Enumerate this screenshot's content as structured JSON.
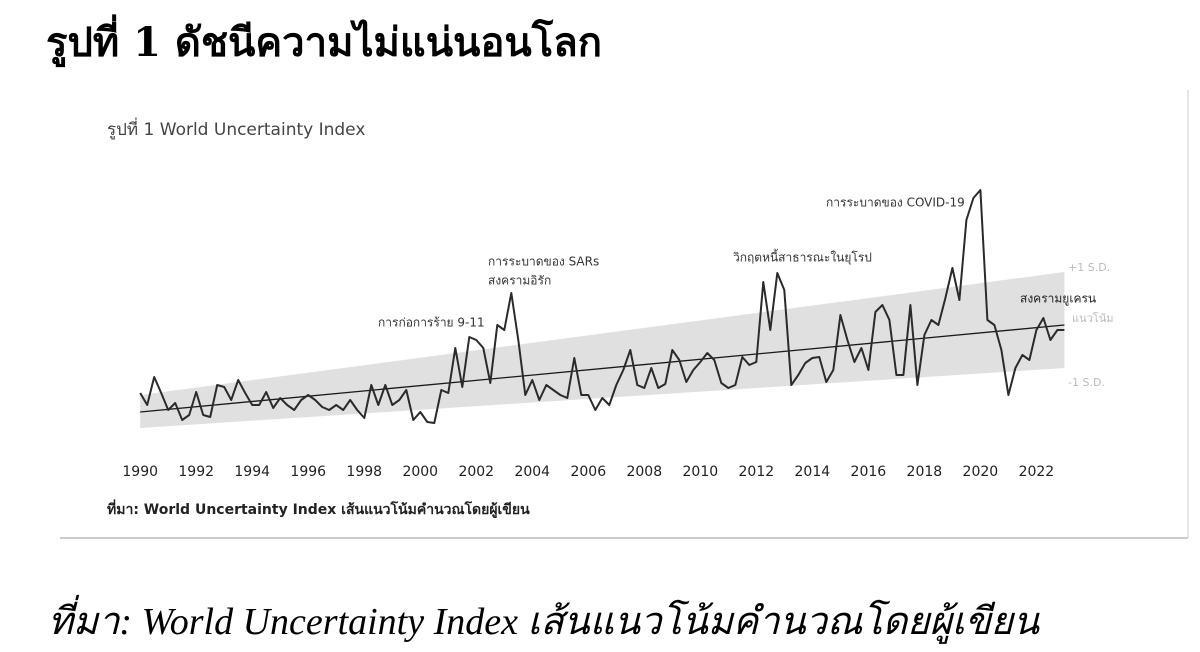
{
  "title": "รูปที่ 1 ดัชนีความไม่แน่นอนโลก",
  "chart_data": {
    "type": "line",
    "title": "รูปที่ 1 World Uncertainty Index",
    "source": "ที่มา: World Uncertainty Index เส้นแนวโน้มคำนวณโดยผู้เขียน",
    "x": [
      1990,
      1990.25,
      1990.5,
      1990.75,
      1991,
      1991.25,
      1991.5,
      1991.75,
      1992,
      1992.25,
      1992.5,
      1992.75,
      1993,
      1993.25,
      1993.5,
      1993.75,
      1994,
      1994.25,
      1994.5,
      1994.75,
      1995,
      1995.25,
      1995.5,
      1995.75,
      1996,
      1996.25,
      1996.5,
      1996.75,
      1997,
      1997.25,
      1997.5,
      1997.75,
      1998,
      1998.25,
      1998.5,
      1998.75,
      1999,
      1999.25,
      1999.5,
      1999.75,
      2000,
      2000.25,
      2000.5,
      2000.75,
      2001,
      2001.25,
      2001.5,
      2001.75,
      2002,
      2002.25,
      2002.5,
      2002.75,
      2003,
      2003.25,
      2003.5,
      2003.75,
      2004,
      2004.25,
      2004.5,
      2004.75,
      2005,
      2005.25,
      2005.5,
      2005.75,
      2006,
      2006.25,
      2006.5,
      2006.75,
      2007,
      2007.25,
      2007.5,
      2007.75,
      2008,
      2008.25,
      2008.5,
      2008.75,
      2009,
      2009.25,
      2009.5,
      2009.75,
      2010,
      2010.25,
      2010.5,
      2010.75,
      2011,
      2011.25,
      2011.5,
      2011.75,
      2012,
      2012.25,
      2012.5,
      2012.75,
      2013,
      2013.25,
      2013.5,
      2013.75,
      2014,
      2014.25,
      2014.5,
      2014.75,
      2015,
      2015.25,
      2015.5,
      2015.75,
      2016,
      2016.25,
      2016.5,
      2016.75,
      2017,
      2017.25,
      2017.5,
      2017.75,
      2018,
      2018.25,
      2018.5,
      2018.75,
      2019,
      2019.25,
      2019.5,
      2019.75,
      2020,
      2020.25,
      2020.5,
      2020.75,
      2021,
      2021.25,
      2021.5,
      2021.75,
      2022,
      2022.25,
      2022.5,
      2022.75,
      2023
    ],
    "values": [
      18.8,
      14,
      25.2,
      18.8,
      12,
      14.8,
      8,
      10,
      19.2,
      10,
      9.2,
      22,
      21.2,
      16,
      24,
      18.8,
      14,
      14,
      19.2,
      12.8,
      16.8,
      14,
      12,
      16,
      18,
      16,
      13.2,
      12,
      14,
      12,
      16,
      12,
      8.8,
      22,
      14,
      22,
      14,
      16,
      20,
      8,
      11.2,
      7.2,
      6.8,
      20,
      18.8,
      36.8,
      21.2,
      41.2,
      40,
      36.8,
      22.8,
      46,
      44,
      58.8,
      40,
      18,
      24,
      16,
      22,
      20,
      18,
      16.8,
      32.8,
      18,
      18,
      12,
      16.8,
      14,
      22,
      28,
      36,
      22,
      20.8,
      28.8,
      20.8,
      22.4,
      36,
      32,
      23.2,
      28,
      31.2,
      34.8,
      32,
      22.8,
      20.8,
      22,
      33.2,
      30,
      31.2,
      63.2,
      44,
      66.8,
      60,
      22,
      26,
      30.8,
      32.8,
      33.2,
      23.2,
      28,
      50,
      40,
      31.2,
      36.8,
      28,
      51.2,
      54,
      48,
      26,
      26,
      54,
      22,
      42,
      48,
      46,
      56.8,
      68.8,
      56,
      88,
      96.8,
      100,
      48,
      46,
      36,
      18,
      28.8,
      34,
      32,
      44,
      48.8,
      40,
      44,
      44
    ],
    "color": "#2b2b2b",
    "trend": {
      "x": [
        1990,
        2023
      ],
      "values": [
        11.2,
        46
      ],
      "color": "#1a1a1a"
    },
    "band": {
      "x": [
        1990,
        2023
      ],
      "upper": [
        18,
        67.2
      ],
      "lower": [
        4.8,
        28.8
      ],
      "color": "#e0e0e0"
    },
    "band_labels": [
      "+1 S.D.",
      "แนวโน้ม",
      "-1 S.D."
    ],
    "annotations": [
      "การก่อการร้าย 9-11",
      "การระบาดของ SARs",
      "สงครามอิรัก",
      "วิกฤตหนี้สาธารณะในยุโรป",
      "การระบาดของ COVID-19",
      "สงครามยูเครน"
    ],
    "xlim": [
      1989.6,
      2023.2
    ],
    "xticks": [
      1990,
      1992,
      1994,
      1996,
      1998,
      2000,
      2002,
      2004,
      2006,
      2008,
      2010,
      2012,
      2014,
      2016,
      2018,
      2020,
      2022
    ],
    "ylim": [
      0,
      100
    ]
  },
  "caption": "ที่มา: World Uncertainty Index เส้นแนวโน้มคำนวณโดยผู้เขียน"
}
